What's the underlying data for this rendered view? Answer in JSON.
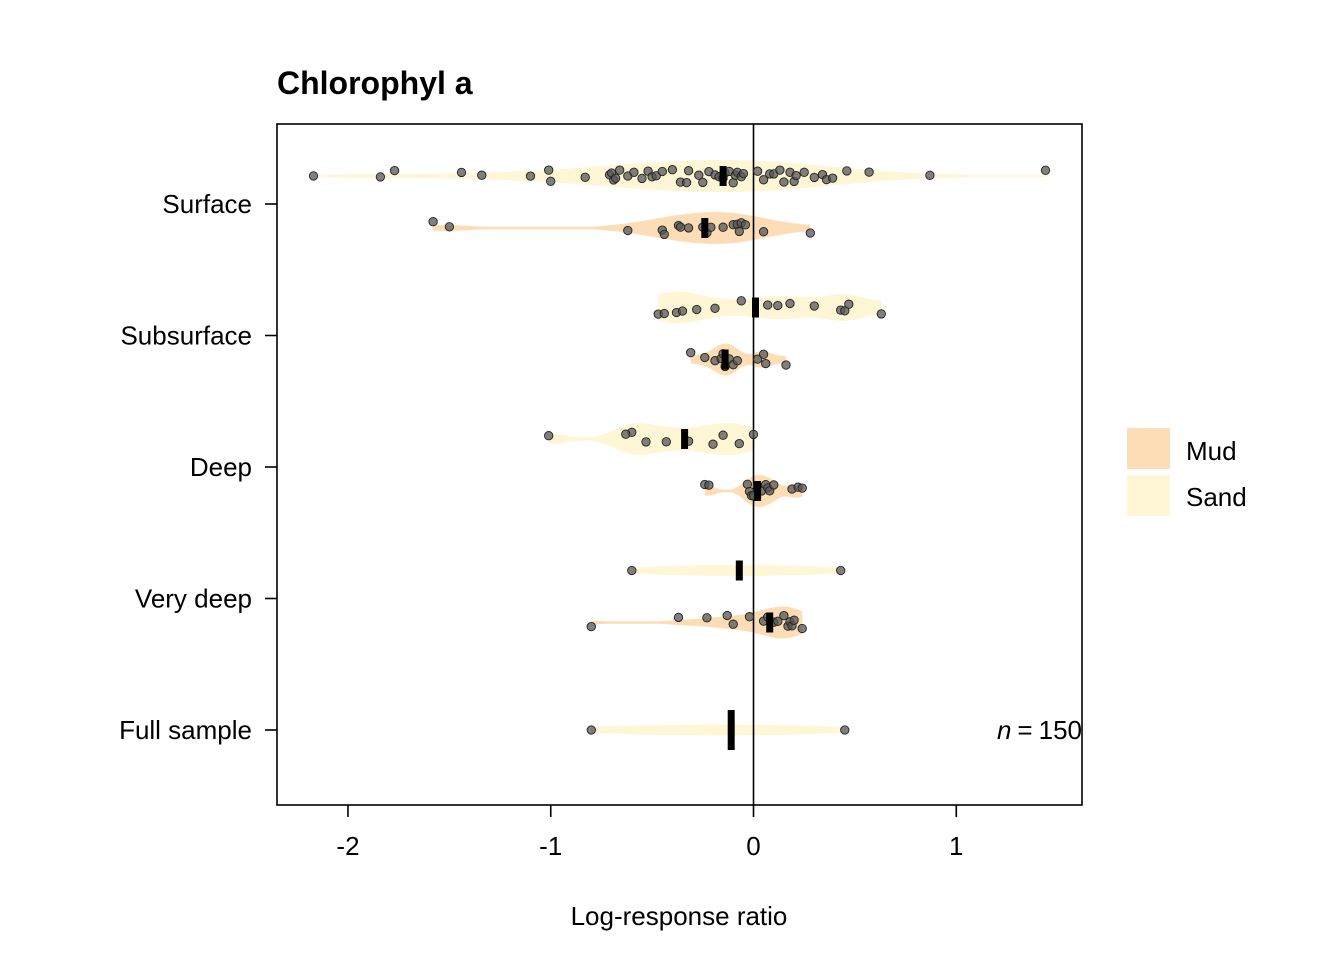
{
  "chart_data": {
    "type": "violin",
    "title": "Chlorophyl a",
    "xlabel": "Log-response ratio",
    "ylabel": "",
    "xlim": [
      -2.35,
      1.62
    ],
    "x_ticks": [
      -2,
      -1,
      0,
      1
    ],
    "reference_line": 0,
    "categories": [
      "Surface",
      "Subsurface",
      "Deep",
      "Very deep",
      "Full sample"
    ],
    "colors": {
      "Mud": "#FDDDB5",
      "Sand": "#FFF6D5",
      "points": "#555555",
      "median": "#000000"
    },
    "legend": {
      "position": "right",
      "entries": [
        "Mud",
        "Sand"
      ]
    },
    "annotation": {
      "n_prefix": "n",
      "n_eq": "=",
      "n_value": "150"
    },
    "groups": [
      {
        "category": "Surface",
        "sediment": "Sand",
        "median": -0.15,
        "points": [
          -2.17,
          -1.84,
          -1.77,
          -1.44,
          -1.34,
          -1.1,
          -1.01,
          -1.0,
          -0.83,
          -0.71,
          -0.7,
          -0.69,
          -0.68,
          -0.66,
          -0.62,
          -0.59,
          -0.55,
          -0.52,
          -0.5,
          -0.48,
          -0.45,
          -0.4,
          -0.36,
          -0.33,
          -0.32,
          -0.27,
          -0.25,
          -0.22,
          -0.19,
          -0.17,
          -0.15,
          -0.14,
          -0.12,
          -0.1,
          -0.09,
          -0.08,
          -0.06,
          -0.05,
          0.02,
          0.05,
          0.08,
          0.1,
          0.13,
          0.15,
          0.18,
          0.2,
          0.21,
          0.25,
          0.3,
          0.34,
          0.36,
          0.39,
          0.46,
          0.57,
          0.87,
          1.44
        ]
      },
      {
        "category": "Surface",
        "sediment": "Mud",
        "median": -0.24,
        "points": [
          -1.58,
          -1.5,
          -0.62,
          -0.45,
          -0.44,
          -0.37,
          -0.36,
          -0.32,
          -0.25,
          -0.23,
          -0.21,
          -0.15,
          -0.1,
          -0.08,
          -0.07,
          -0.06,
          -0.04,
          0.05,
          0.28
        ]
      },
      {
        "category": "Subsurface",
        "sediment": "Sand",
        "median": 0.01,
        "points": [
          -0.47,
          -0.44,
          -0.38,
          -0.35,
          -0.28,
          -0.19,
          -0.06,
          0.07,
          0.12,
          0.18,
          0.3,
          0.43,
          0.45,
          0.47,
          0.63
        ]
      },
      {
        "category": "Subsurface",
        "sediment": "Mud",
        "median": -0.14,
        "points": [
          -0.31,
          -0.24,
          -0.19,
          -0.16,
          -0.15,
          -0.14,
          -0.12,
          -0.1,
          -0.08,
          0.02,
          0.05,
          0.06,
          0.16
        ]
      },
      {
        "category": "Deep",
        "sediment": "Sand",
        "median": -0.34,
        "points": [
          -1.01,
          -0.6,
          -0.63,
          -0.53,
          -0.43,
          -0.32,
          -0.2,
          -0.15,
          -0.07,
          0.0
        ]
      },
      {
        "category": "Deep",
        "sediment": "Mud",
        "median": 0.02,
        "points": [
          -0.24,
          -0.22,
          -0.03,
          -0.02,
          -0.01,
          0.0,
          0.02,
          0.04,
          0.06,
          0.07,
          0.08,
          0.1,
          0.19,
          0.22,
          0.24
        ]
      },
      {
        "category": "Very deep",
        "sediment": "Sand",
        "median": -0.07,
        "points": [
          -0.6,
          0.43
        ]
      },
      {
        "category": "Very deep",
        "sediment": "Mud",
        "median": 0.08,
        "points": [
          -0.8,
          -0.37,
          -0.23,
          -0.13,
          -0.1,
          -0.02,
          0.05,
          0.07,
          0.1,
          0.12,
          0.15,
          0.17,
          0.18,
          0.19,
          0.2,
          0.24
        ]
      },
      {
        "category": "Full sample",
        "sediment": "Sand",
        "median": -0.11,
        "points": [
          -0.8,
          0.45
        ]
      }
    ]
  }
}
